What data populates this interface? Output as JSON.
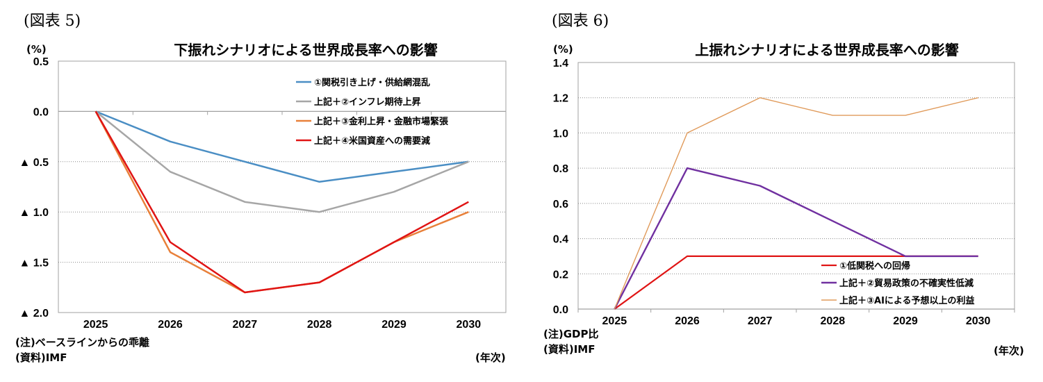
{
  "chart_data": [
    {
      "type": "line",
      "figure_label": "(図表 5)",
      "title": "下振れシナリオによる世界成長率への影響",
      "unit_label": "(%)",
      "xlabel": "(年次)",
      "x": [
        "2025",
        "2026",
        "2027",
        "2028",
        "2029",
        "2030"
      ],
      "ylim": [
        -2.0,
        0.5
      ],
      "yticks": [
        0.5,
        0.0,
        -0.5,
        -1.0,
        -1.5,
        -2.0
      ],
      "ytick_labels": [
        "0.5",
        "0.0",
        "▲ 0.5",
        "▲ 1.0",
        "▲ 1.5",
        "▲ 2.0"
      ],
      "grid": "horizontal-dotted",
      "legend_position": "top-right",
      "series": [
        {
          "name": "①関税引き上げ・供給網混乱",
          "color": "#4a8ec4",
          "values": [
            0.0,
            -0.3,
            -0.5,
            -0.7,
            -0.6,
            -0.5
          ]
        },
        {
          "name": "上記＋②インフレ期待上昇",
          "color": "#a6a6a6",
          "values": [
            0.0,
            -0.6,
            -0.9,
            -1.0,
            -0.8,
            -0.5
          ]
        },
        {
          "name": "上記＋③金利上昇・金融市場緊張",
          "color": "#e8803a",
          "values": [
            0.0,
            -1.4,
            -1.8,
            -1.7,
            -1.3,
            -1.0
          ]
        },
        {
          "name": "上記＋④米国資産への需要減",
          "color": "#e01414",
          "values": [
            0.0,
            -1.3,
            -1.8,
            -1.7,
            -1.3,
            -0.9
          ]
        }
      ],
      "notes": [
        "(注)ベースラインからの乖離",
        "(資料)IMF"
      ]
    },
    {
      "type": "line",
      "figure_label": "(図表 6)",
      "title": "上振れシナリオによる世界成長率への影響",
      "unit_label": "(%)",
      "xlabel": "(年次)",
      "x": [
        "2025",
        "2026",
        "2027",
        "2028",
        "2029",
        "2030"
      ],
      "ylim": [
        0.0,
        1.4
      ],
      "yticks": [
        1.4,
        1.2,
        1.0,
        0.8,
        0.6,
        0.4,
        0.2,
        0.0
      ],
      "ytick_labels": [
        "1.4",
        "1.2",
        "1.0",
        "0.8",
        "0.6",
        "0.4",
        "0.2",
        "0.0"
      ],
      "grid": "horizontal-dotted",
      "legend_position": "bottom-right",
      "series": [
        {
          "name": "①低関税への回帰",
          "color": "#e01414",
          "values": [
            0.0,
            0.3,
            0.3,
            0.3,
            0.3,
            0.3
          ]
        },
        {
          "name": "上記＋②貿易政策の不確実性低減",
          "color": "#7030a0",
          "values": [
            0.0,
            0.8,
            0.7,
            0.5,
            0.3,
            0.3
          ]
        },
        {
          "name": "上記＋③AIによる予想以上の利益",
          "color": "#e09a5a",
          "values": [
            0.0,
            1.0,
            1.2,
            1.1,
            1.1,
            1.2
          ]
        }
      ],
      "notes": [
        "(注)GDP比",
        "(資料)IMF"
      ]
    }
  ]
}
